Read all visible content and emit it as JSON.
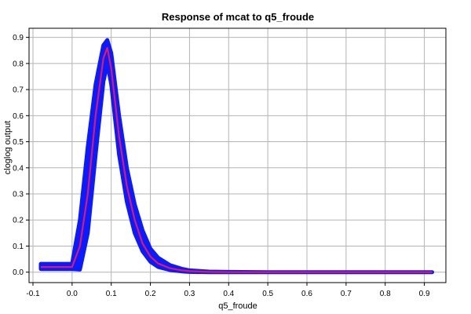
{
  "chart_data": {
    "type": "line",
    "title": "Response of mcat to q5_froude",
    "xlabel": "q5_froude",
    "ylabel": "cloglog output",
    "xlim": [
      -0.11,
      0.955
    ],
    "ylim": [
      -0.04,
      0.935
    ],
    "xticks": [
      -0.1,
      0.0,
      0.1,
      0.2,
      0.3,
      0.4,
      0.5,
      0.6,
      0.7,
      0.8,
      0.9
    ],
    "xtick_labels": [
      "-0.1",
      "0.0",
      "0.1",
      "0.2",
      "0.3",
      "0.4",
      "0.5",
      "0.6",
      "0.7",
      "0.8",
      "0.9"
    ],
    "yticks": [
      0.0,
      0.1,
      0.2,
      0.3,
      0.4,
      0.5,
      0.6,
      0.7,
      0.8,
      0.9
    ],
    "ytick_labels": [
      "0.0",
      "0.1",
      "0.2",
      "0.3",
      "0.4",
      "0.5",
      "0.6",
      "0.7",
      "0.8",
      "0.9"
    ],
    "grid": true,
    "legend": "none",
    "colors": {
      "mean": "#e8175d",
      "band": "#0a1cff",
      "grid": "#b4b4b4"
    },
    "series": [
      {
        "role": "mean",
        "x": [
          -0.08,
          0.0,
          0.02,
          0.04,
          0.06,
          0.08,
          0.09,
          0.1,
          0.12,
          0.14,
          0.16,
          0.18,
          0.2,
          0.22,
          0.25,
          0.28,
          0.3,
          0.35,
          0.4,
          0.5,
          0.6,
          0.7,
          0.8,
          0.92
        ],
        "y": [
          0.02,
          0.02,
          0.1,
          0.3,
          0.6,
          0.82,
          0.86,
          0.78,
          0.52,
          0.33,
          0.2,
          0.11,
          0.06,
          0.033,
          0.015,
          0.007,
          0.004,
          0.001,
          0.0,
          0.0,
          0.0,
          0.0,
          0.0,
          0.0
        ]
      },
      {
        "role": "upper",
        "x": [
          -0.08,
          0.0,
          0.02,
          0.04,
          0.06,
          0.08,
          0.09,
          0.1,
          0.12,
          0.14,
          0.16,
          0.18,
          0.2,
          0.22,
          0.25,
          0.28,
          0.3,
          0.35,
          0.4,
          0.5,
          0.6,
          0.7,
          0.8,
          0.92
        ],
        "y": [
          0.032,
          0.032,
          0.2,
          0.48,
          0.72,
          0.87,
          0.89,
          0.84,
          0.6,
          0.4,
          0.26,
          0.16,
          0.09,
          0.055,
          0.027,
          0.013,
          0.007,
          0.002,
          0.001,
          0.0,
          0.0,
          0.0,
          0.0,
          0.0
        ]
      },
      {
        "role": "lower",
        "x": [
          -0.08,
          0.0,
          0.02,
          0.04,
          0.06,
          0.08,
          0.09,
          0.1,
          0.12,
          0.14,
          0.16,
          0.18,
          0.2,
          0.22,
          0.25,
          0.28,
          0.3,
          0.35,
          0.4,
          0.5,
          0.6,
          0.7,
          0.8,
          0.92
        ],
        "y": [
          0.012,
          0.012,
          0.01,
          0.15,
          0.45,
          0.73,
          0.8,
          0.72,
          0.45,
          0.27,
          0.15,
          0.08,
          0.04,
          0.02,
          0.008,
          0.003,
          0.001,
          0.0,
          0.0,
          0.0,
          0.0,
          0.0,
          0.0,
          0.0
        ]
      }
    ]
  }
}
